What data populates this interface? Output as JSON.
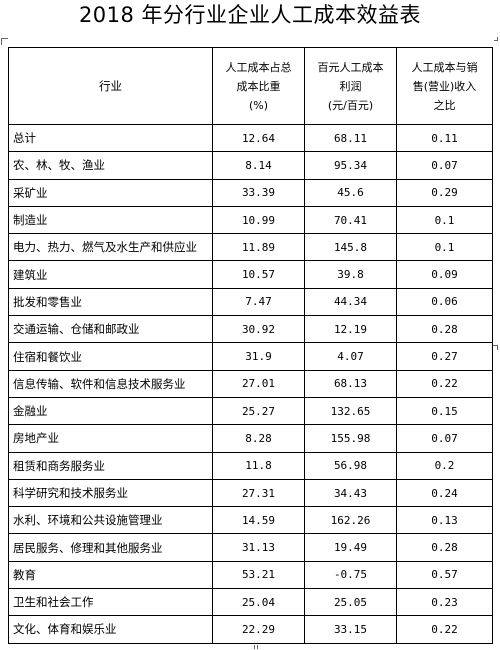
{
  "title": "2018 年分行业企业人工成本效益表",
  "headers": {
    "industry": "行业",
    "col2": [
      "人工成本占总",
      "成本比重",
      "(%)"
    ],
    "col3": [
      "百元人工成本",
      "利润",
      "(元/百元)"
    ],
    "col4": [
      "人工成本与销",
      "售(营业)收入",
      "之比"
    ]
  },
  "rows": [
    {
      "name": "总计",
      "share": "12.64",
      "profit": "68.11",
      "ratio": "0.11"
    },
    {
      "name": "农、林、牧、渔业",
      "share": "8.14",
      "profit": "95.34",
      "ratio": "0.07"
    },
    {
      "name": "采矿业",
      "share": "33.39",
      "profit": "45.6",
      "ratio": "0.29"
    },
    {
      "name": "制造业",
      "share": "10.99",
      "profit": "70.41",
      "ratio": "0.1"
    },
    {
      "name": "电力、热力、燃气及水生产和供应业",
      "share": "11.89",
      "profit": "145.8",
      "ratio": "0.1"
    },
    {
      "name": "建筑业",
      "share": "10.57",
      "profit": "39.8",
      "ratio": "0.09"
    },
    {
      "name": "批发和零售业",
      "share": "7.47",
      "profit": "44.34",
      "ratio": "0.06"
    },
    {
      "name": "交通运输、仓储和邮政业",
      "share": "30.92",
      "profit": "12.19",
      "ratio": "0.28"
    },
    {
      "name": "住宿和餐饮业",
      "share": "31.9",
      "profit": "4.07",
      "ratio": "0.27"
    },
    {
      "name": "信息传输、软件和信息技术服务业",
      "share": "27.01",
      "profit": "68.13",
      "ratio": "0.22"
    },
    {
      "name": "金融业",
      "share": "25.27",
      "profit": "132.65",
      "ratio": "0.15"
    },
    {
      "name": "房地产业",
      "share": "8.28",
      "profit": "155.98",
      "ratio": "0.07"
    },
    {
      "name": "租赁和商务服务业",
      "share": "11.8",
      "profit": "56.98",
      "ratio": "0.2"
    },
    {
      "name": "科学研究和技术服务业",
      "share": "27.31",
      "profit": "34.43",
      "ratio": "0.24"
    },
    {
      "name": "水利、环境和公共设施管理业",
      "share": "14.59",
      "profit": "162.26",
      "ratio": "0.13"
    },
    {
      "name": "居民服务、修理和其他服务业",
      "share": "31.13",
      "profit": "19.49",
      "ratio": "0.28"
    },
    {
      "name": "教育",
      "share": "53.21",
      "profit": "-0.75",
      "ratio": "0.57"
    },
    {
      "name": "卫生和社会工作",
      "share": "25.04",
      "profit": "25.05",
      "ratio": "0.23"
    },
    {
      "name": "文化、体育和娱乐业",
      "share": "22.29",
      "profit": "33.15",
      "ratio": "0.22"
    }
  ]
}
